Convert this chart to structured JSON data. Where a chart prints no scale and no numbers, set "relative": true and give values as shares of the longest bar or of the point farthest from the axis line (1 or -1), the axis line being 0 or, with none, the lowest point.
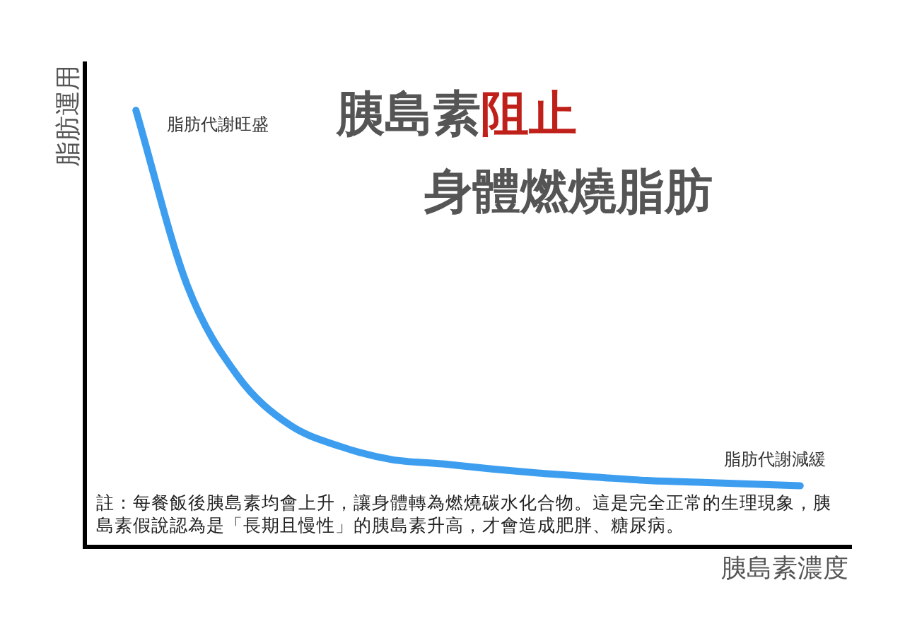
{
  "chart_data": {
    "type": "line",
    "title": "胰島素阻止",
    "subtitle": "身體燃燒脂肪",
    "xlabel": "胰島素濃度",
    "ylabel": "脂肪運用",
    "annotations": [
      "脂肪代謝旺盛",
      "脂肪代謝減緩",
      "註：每餐飯後胰島素均會上升，讓身體轉為燃燒碳水化合物。這是完全正常的生理現象，胰島素假說認為是「長期且慢性」的胰島素升高，才會造成肥胖、糖尿病。"
    ],
    "categories": [
      null,
      null,
      null,
      null,
      null,
      null,
      null,
      null,
      null,
      null,
      null,
      null,
      null,
      null,
      null,
      null
    ],
    "series": [
      {
        "color": "#3d9ef0",
        "values": [
          null,
          1.0,
          0.6,
          0.39,
          0.28,
          0.23,
          0.2,
          0.19,
          0.178,
          0.168,
          0.16,
          0.152,
          0.148,
          0.144,
          0.14,
          null
        ]
      }
    ],
    "relative": true,
    "grid": false,
    "legend": false,
    "marker": "none",
    "line_style": "solid"
  }
}
